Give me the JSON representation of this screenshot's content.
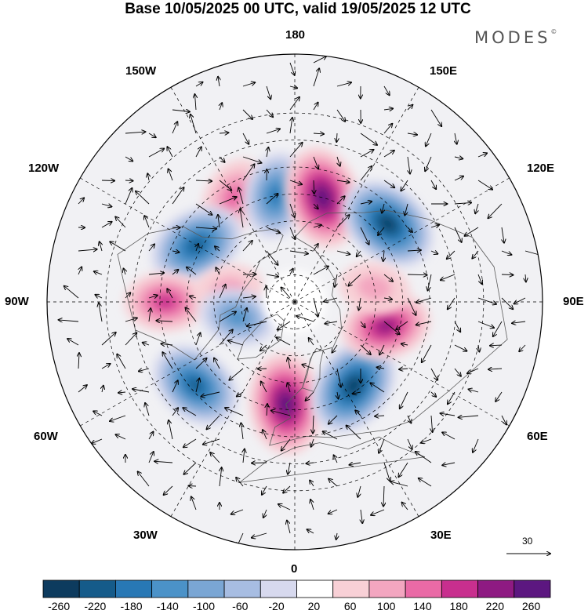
{
  "title": "Base 10/05/2025 00 UTC, valid 19/05/2025 12 UTC",
  "brand": "MODES",
  "brand_mark": "©",
  "longitudes": {
    "top": "180",
    "bottom": "0",
    "left": "90W",
    "right": "90E",
    "upper_left": "150W",
    "upper_right": "150E",
    "mid_left_upper": "120W",
    "mid_right_upper": "120E",
    "mid_left_lower": "60W",
    "mid_right_lower": "60E",
    "lower_left": "30W",
    "lower_right": "30E"
  },
  "reference_vector": "30",
  "colorbar": {
    "colors": [
      "#0d3b5e",
      "#155b8a",
      "#2878b5",
      "#4b92c8",
      "#7aa6d4",
      "#a7bde2",
      "#d7d9ee",
      "#ffffff",
      "#f8d0d6",
      "#f3a6c0",
      "#ea6aa6",
      "#c82f8e",
      "#8e1a82",
      "#5c1780"
    ],
    "labels": [
      "-260",
      "-220",
      "-180",
      "-140",
      "-100",
      "-60",
      "-20",
      "20",
      "60",
      "100",
      "140",
      "180",
      "220",
      "260"
    ]
  },
  "anomaly_centers": [
    {
      "sign": "positive",
      "lon": -150,
      "lat": 45,
      "strength": 0.55
    },
    {
      "sign": "negative",
      "lon": -170,
      "lat": 50,
      "strength": 0.7
    },
    {
      "sign": "positive",
      "lon": 165,
      "lat": 50,
      "strength": 1.0
    },
    {
      "sign": "negative",
      "lon": 130,
      "lat": 45,
      "strength": 1.0
    },
    {
      "sign": "negative",
      "lon": -120,
      "lat": 48,
      "strength": 0.9
    },
    {
      "sign": "positive",
      "lon": -90,
      "lat": 42,
      "strength": 0.6
    },
    {
      "sign": "positive",
      "lon": -100,
      "lat": 65,
      "strength": 0.35
    },
    {
      "sign": "negative",
      "lon": -75,
      "lat": 68,
      "strength": 0.5
    },
    {
      "sign": "negative",
      "lon": -50,
      "lat": 42,
      "strength": 0.85
    },
    {
      "sign": "positive",
      "lon": -5,
      "lat": 52,
      "strength": 1.0
    },
    {
      "sign": "negative",
      "lon": 35,
      "lat": 52,
      "strength": 1.0
    },
    {
      "sign": "positive",
      "lon": 75,
      "lat": 55,
      "strength": 0.75
    },
    {
      "sign": "positive",
      "lon": 100,
      "lat": 60,
      "strength": 0.35
    }
  ]
}
